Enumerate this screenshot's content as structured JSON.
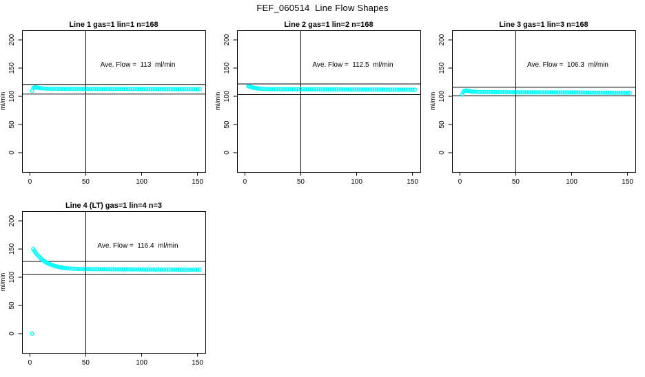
{
  "page": {
    "title": "FEF_060514  Line Flow Shapes",
    "background": "#ffffff"
  },
  "style": {
    "series_color": "#00ffff",
    "axis_color": "#000000",
    "marker": {
      "shape": "open-circle",
      "radius": 2.4,
      "stroke_width": 1.4
    }
  },
  "chart_data": [
    {
      "type": "scatter",
      "title": "Line 1 gas=1 lin=1 n=168",
      "annotation": "Ave. Flow =  113  ml/min",
      "ave_flow_ml_min": 113,
      "n": 168,
      "xlabel": "",
      "ylabel": "ml/min",
      "xticks": [
        0,
        50,
        100,
        150
      ],
      "yticks": [
        0,
        50,
        100,
        150,
        200
      ],
      "xlim": [
        -7,
        157
      ],
      "ylim": [
        -34.2,
        217.1
      ],
      "grid": false,
      "vline_x": 50,
      "hlines": [
        121,
        104
      ],
      "points": [
        [
          2,
          110
        ],
        [
          3,
          114.5
        ],
        [
          4,
          116
        ],
        [
          5,
          116.2
        ],
        [
          6,
          115.6
        ],
        [
          7,
          115.1
        ],
        [
          8,
          114.8
        ],
        [
          9,
          114.5
        ],
        [
          10,
          114.3
        ],
        [
          12,
          114.0
        ],
        [
          14,
          113.8
        ],
        [
          16,
          113.6
        ],
        [
          18,
          113.5
        ],
        [
          20,
          113.4
        ],
        [
          22,
          113.5
        ],
        [
          24,
          113.3
        ],
        [
          26,
          113.4
        ],
        [
          28,
          113.2
        ],
        [
          30,
          113.3
        ],
        [
          32,
          113.4
        ],
        [
          34,
          113.2
        ],
        [
          36,
          113.3
        ],
        [
          38,
          113.1
        ],
        [
          40,
          113.3
        ],
        [
          42,
          113.2
        ],
        [
          44,
          113.4
        ],
        [
          46,
          113.1
        ],
        [
          48,
          113.2
        ],
        [
          50,
          113.3
        ],
        [
          52,
          113.1
        ],
        [
          54,
          113.2
        ],
        [
          56,
          113.0
        ],
        [
          58,
          113.2
        ],
        [
          60,
          113.1
        ],
        [
          62,
          113.3
        ],
        [
          64,
          113.0
        ],
        [
          66,
          113.1
        ],
        [
          68,
          113.2
        ],
        [
          70,
          113.0
        ],
        [
          72,
          113.1
        ],
        [
          74,
          112.9
        ],
        [
          76,
          113.1
        ],
        [
          78,
          113.0
        ],
        [
          80,
          113.2
        ],
        [
          82,
          112.9
        ],
        [
          84,
          113.0
        ],
        [
          86,
          113.1
        ],
        [
          88,
          112.9
        ],
        [
          90,
          113.0
        ],
        [
          92,
          112.8
        ],
        [
          94,
          113.0
        ],
        [
          96,
          112.9
        ],
        [
          98,
          113.1
        ],
        [
          100,
          112.8
        ],
        [
          102,
          112.9
        ],
        [
          104,
          113.0
        ],
        [
          106,
          112.8
        ],
        [
          108,
          112.9
        ],
        [
          110,
          112.7
        ],
        [
          112,
          112.9
        ],
        [
          114,
          112.8
        ],
        [
          116,
          113.0
        ],
        [
          118,
          112.7
        ],
        [
          120,
          112.8
        ],
        [
          122,
          112.9
        ],
        [
          124,
          112.7
        ],
        [
          126,
          112.8
        ],
        [
          128,
          112.6
        ],
        [
          130,
          112.8
        ],
        [
          132,
          112.7
        ],
        [
          134,
          112.9
        ],
        [
          136,
          112.6
        ],
        [
          138,
          112.7
        ],
        [
          140,
          112.8
        ],
        [
          142,
          112.6
        ],
        [
          144,
          112.7
        ],
        [
          146,
          112.5
        ],
        [
          148,
          112.7
        ],
        [
          150,
          112.6
        ],
        [
          152,
          112.5
        ]
      ]
    },
    {
      "type": "scatter",
      "title": "Line 2 gas=1 lin=2 n=168",
      "annotation": "Ave. Flow =  112.5  ml/min",
      "ave_flow_ml_min": 112.5,
      "n": 168,
      "xlabel": "",
      "ylabel": "ml/min",
      "xticks": [
        0,
        50,
        100,
        150
      ],
      "yticks": [
        0,
        50,
        100,
        150,
        200
      ],
      "xlim": [
        -7,
        157
      ],
      "ylim": [
        -34.2,
        217.1
      ],
      "grid": false,
      "vline_x": 50,
      "hlines": [
        122,
        103
      ],
      "points": [
        [
          3,
          118
        ],
        [
          4,
          117.5
        ],
        [
          5,
          116.8
        ],
        [
          6,
          116.2
        ],
        [
          7,
          115.6
        ],
        [
          8,
          115.1
        ],
        [
          9,
          114.7
        ],
        [
          10,
          114.4
        ],
        [
          11,
          114.1
        ],
        [
          12,
          113.8
        ],
        [
          14,
          113.4
        ],
        [
          16,
          113.2
        ],
        [
          18,
          113.0
        ],
        [
          20,
          112.9
        ],
        [
          22,
          112.8
        ],
        [
          24,
          112.9
        ],
        [
          26,
          112.7
        ],
        [
          28,
          112.8
        ],
        [
          30,
          112.7
        ],
        [
          32,
          112.8
        ],
        [
          34,
          112.6
        ],
        [
          36,
          112.7
        ],
        [
          38,
          112.6
        ],
        [
          40,
          112.7
        ],
        [
          42,
          112.5
        ],
        [
          44,
          112.6
        ],
        [
          46,
          112.5
        ],
        [
          48,
          112.6
        ],
        [
          50,
          112.5
        ],
        [
          52,
          112.6
        ],
        [
          54,
          112.4
        ],
        [
          56,
          112.5
        ],
        [
          58,
          112.4
        ],
        [
          60,
          112.5
        ],
        [
          62,
          112.3
        ],
        [
          64,
          112.5
        ],
        [
          66,
          112.4
        ],
        [
          68,
          112.3
        ],
        [
          70,
          112.4
        ],
        [
          72,
          112.3
        ],
        [
          74,
          112.4
        ],
        [
          76,
          112.2
        ],
        [
          78,
          112.3
        ],
        [
          80,
          112.2
        ],
        [
          82,
          112.3
        ],
        [
          84,
          112.2
        ],
        [
          86,
          112.3
        ],
        [
          88,
          112.1
        ],
        [
          90,
          112.2
        ],
        [
          92,
          112.1
        ],
        [
          94,
          112.2
        ],
        [
          96,
          112.1
        ],
        [
          98,
          112.2
        ],
        [
          100,
          112.0
        ],
        [
          102,
          112.1
        ],
        [
          104,
          112.0
        ],
        [
          106,
          112.1
        ],
        [
          108,
          112.0
        ],
        [
          110,
          112.1
        ],
        [
          112,
          111.9
        ],
        [
          114,
          112.0
        ],
        [
          116,
          111.9
        ],
        [
          118,
          112.0
        ],
        [
          120,
          111.9
        ],
        [
          122,
          112.0
        ],
        [
          124,
          111.8
        ],
        [
          126,
          111.9
        ],
        [
          128,
          111.8
        ],
        [
          130,
          111.9
        ],
        [
          132,
          111.8
        ],
        [
          134,
          111.9
        ],
        [
          136,
          111.7
        ],
        [
          138,
          111.8
        ],
        [
          140,
          111.7
        ],
        [
          142,
          111.8
        ],
        [
          144,
          111.7
        ],
        [
          146,
          111.8
        ],
        [
          148,
          111.6
        ],
        [
          150,
          111.7
        ],
        [
          152,
          111.6
        ]
      ]
    },
    {
      "type": "scatter",
      "title": "Line 3 gas=1 lin=3 n=168",
      "annotation": "Ave. Flow =  106.3  ml/min",
      "ave_flow_ml_min": 106.3,
      "n": 168,
      "xlabel": "",
      "ylabel": "ml/min",
      "xticks": [
        0,
        50,
        100,
        150
      ],
      "yticks": [
        0,
        50,
        100,
        150,
        200
      ],
      "xlim": [
        -7,
        157
      ],
      "ylim": [
        -34.2,
        217.1
      ],
      "grid": false,
      "vline_x": 50,
      "hlines": [
        116,
        101
      ],
      "points": [
        [
          2,
          103
        ],
        [
          3,
          107.5
        ],
        [
          4,
          109.5
        ],
        [
          5,
          110.3
        ],
        [
          6,
          110.2
        ],
        [
          7,
          109.8
        ],
        [
          8,
          109.4
        ],
        [
          9,
          109.0
        ],
        [
          10,
          108.7
        ],
        [
          11,
          108.4
        ],
        [
          12,
          108.2
        ],
        [
          14,
          107.9
        ],
        [
          16,
          107.7
        ],
        [
          18,
          107.5
        ],
        [
          20,
          107.4
        ],
        [
          22,
          107.5
        ],
        [
          24,
          107.3
        ],
        [
          26,
          107.4
        ],
        [
          28,
          107.3
        ],
        [
          30,
          107.4
        ],
        [
          32,
          107.2
        ],
        [
          34,
          107.3
        ],
        [
          36,
          107.2
        ],
        [
          38,
          107.3
        ],
        [
          40,
          107.1
        ],
        [
          42,
          107.2
        ],
        [
          44,
          107.1
        ],
        [
          46,
          107.2
        ],
        [
          48,
          107.1
        ],
        [
          50,
          107.2
        ],
        [
          52,
          107.0
        ],
        [
          54,
          107.1
        ],
        [
          56,
          107.0
        ],
        [
          58,
          107.1
        ],
        [
          60,
          107.0
        ],
        [
          62,
          107.1
        ],
        [
          64,
          106.9
        ],
        [
          66,
          107.0
        ],
        [
          68,
          106.9
        ],
        [
          70,
          107.0
        ],
        [
          72,
          106.9
        ],
        [
          74,
          107.0
        ],
        [
          76,
          106.8
        ],
        [
          78,
          106.9
        ],
        [
          80,
          106.8
        ],
        [
          82,
          106.9
        ],
        [
          84,
          106.8
        ],
        [
          86,
          106.9
        ],
        [
          88,
          106.7
        ],
        [
          90,
          106.8
        ],
        [
          92,
          106.7
        ],
        [
          94,
          106.8
        ],
        [
          96,
          106.7
        ],
        [
          98,
          106.8
        ],
        [
          100,
          106.6
        ],
        [
          102,
          106.7
        ],
        [
          104,
          106.6
        ],
        [
          106,
          106.7
        ],
        [
          108,
          106.6
        ],
        [
          110,
          106.7
        ],
        [
          112,
          106.5
        ],
        [
          114,
          106.6
        ],
        [
          116,
          106.5
        ],
        [
          118,
          106.6
        ],
        [
          120,
          106.5
        ],
        [
          122,
          106.6
        ],
        [
          124,
          106.4
        ],
        [
          126,
          106.5
        ],
        [
          128,
          106.4
        ],
        [
          130,
          106.5
        ],
        [
          132,
          106.4
        ],
        [
          134,
          106.5
        ],
        [
          136,
          106.3
        ],
        [
          138,
          106.4
        ],
        [
          140,
          106.3
        ],
        [
          142,
          106.4
        ],
        [
          144,
          106.3
        ],
        [
          146,
          106.4
        ],
        [
          148,
          106.2
        ],
        [
          150,
          106.3
        ],
        [
          152,
          106.2
        ]
      ]
    },
    {
      "type": "scatter",
      "title": "Line 4 (LT) gas=1 lin=4 n=3",
      "annotation": "Ave. Flow =  116.4  ml/min",
      "ave_flow_ml_min": 116.4,
      "n": 3,
      "xlabel": "",
      "ylabel": "ml/min",
      "xticks": [
        0,
        50,
        100,
        150
      ],
      "yticks": [
        0,
        50,
        100,
        150,
        200
      ],
      "xlim": [
        -7,
        157
      ],
      "ylim": [
        -34.2,
        217.1
      ],
      "grid": false,
      "vline_x": 50,
      "hlines": [
        128,
        105
      ],
      "points": [
        [
          2,
          0
        ],
        [
          3,
          150
        ],
        [
          4,
          146.9
        ],
        [
          5,
          144.0
        ],
        [
          6,
          141.4
        ],
        [
          7,
          139.0
        ],
        [
          8,
          136.8
        ],
        [
          9,
          134.8
        ],
        [
          10,
          133.0
        ],
        [
          11,
          131.3
        ],
        [
          12,
          129.8
        ],
        [
          13,
          128.4
        ],
        [
          14,
          127.1
        ],
        [
          15,
          125.9
        ],
        [
          16,
          124.9
        ],
        [
          17,
          123.9
        ],
        [
          18,
          123.0
        ],
        [
          19,
          122.2
        ],
        [
          20,
          121.4
        ],
        [
          21,
          120.8
        ],
        [
          22,
          120.1
        ],
        [
          23,
          119.6
        ],
        [
          24,
          119.0
        ],
        [
          25,
          118.6
        ],
        [
          26,
          118.1
        ],
        [
          27,
          117.7
        ],
        [
          28,
          117.4
        ],
        [
          29,
          117.0
        ],
        [
          30,
          116.7
        ],
        [
          32,
          116.2
        ],
        [
          34,
          115.8
        ],
        [
          36,
          115.4
        ],
        [
          38,
          115.1
        ],
        [
          40,
          114.9
        ],
        [
          42,
          114.7
        ],
        [
          44,
          114.6
        ],
        [
          46,
          114.5
        ],
        [
          48,
          114.4
        ],
        [
          50,
          114.4
        ],
        [
          52,
          114.3
        ],
        [
          54,
          114.4
        ],
        [
          56,
          114.2
        ],
        [
          58,
          114.3
        ],
        [
          60,
          114.2
        ],
        [
          62,
          114.3
        ],
        [
          64,
          114.1
        ],
        [
          66,
          114.2
        ],
        [
          68,
          114.1
        ],
        [
          70,
          114.2
        ],
        [
          72,
          114.0
        ],
        [
          74,
          114.1
        ],
        [
          76,
          114.0
        ],
        [
          78,
          114.1
        ],
        [
          80,
          113.9
        ],
        [
          82,
          114.0
        ],
        [
          84,
          113.9
        ],
        [
          86,
          114.0
        ],
        [
          88,
          113.9
        ],
        [
          90,
          114.0
        ],
        [
          92,
          113.8
        ],
        [
          94,
          113.9
        ],
        [
          96,
          113.8
        ],
        [
          98,
          113.9
        ],
        [
          100,
          113.8
        ],
        [
          102,
          113.9
        ],
        [
          104,
          113.7
        ],
        [
          106,
          113.8
        ],
        [
          108,
          113.7
        ],
        [
          110,
          113.8
        ],
        [
          112,
          113.7
        ],
        [
          114,
          113.8
        ],
        [
          116,
          113.6
        ],
        [
          118,
          113.7
        ],
        [
          120,
          113.6
        ],
        [
          122,
          113.7
        ],
        [
          124,
          113.6
        ],
        [
          126,
          113.7
        ],
        [
          128,
          113.5
        ],
        [
          130,
          113.6
        ],
        [
          132,
          113.5
        ],
        [
          134,
          113.6
        ],
        [
          136,
          113.5
        ],
        [
          138,
          113.6
        ],
        [
          140,
          113.4
        ],
        [
          142,
          113.5
        ],
        [
          144,
          113.4
        ],
        [
          146,
          113.5
        ],
        [
          148,
          113.4
        ],
        [
          150,
          113.5
        ],
        [
          152,
          113.4
        ]
      ]
    }
  ]
}
